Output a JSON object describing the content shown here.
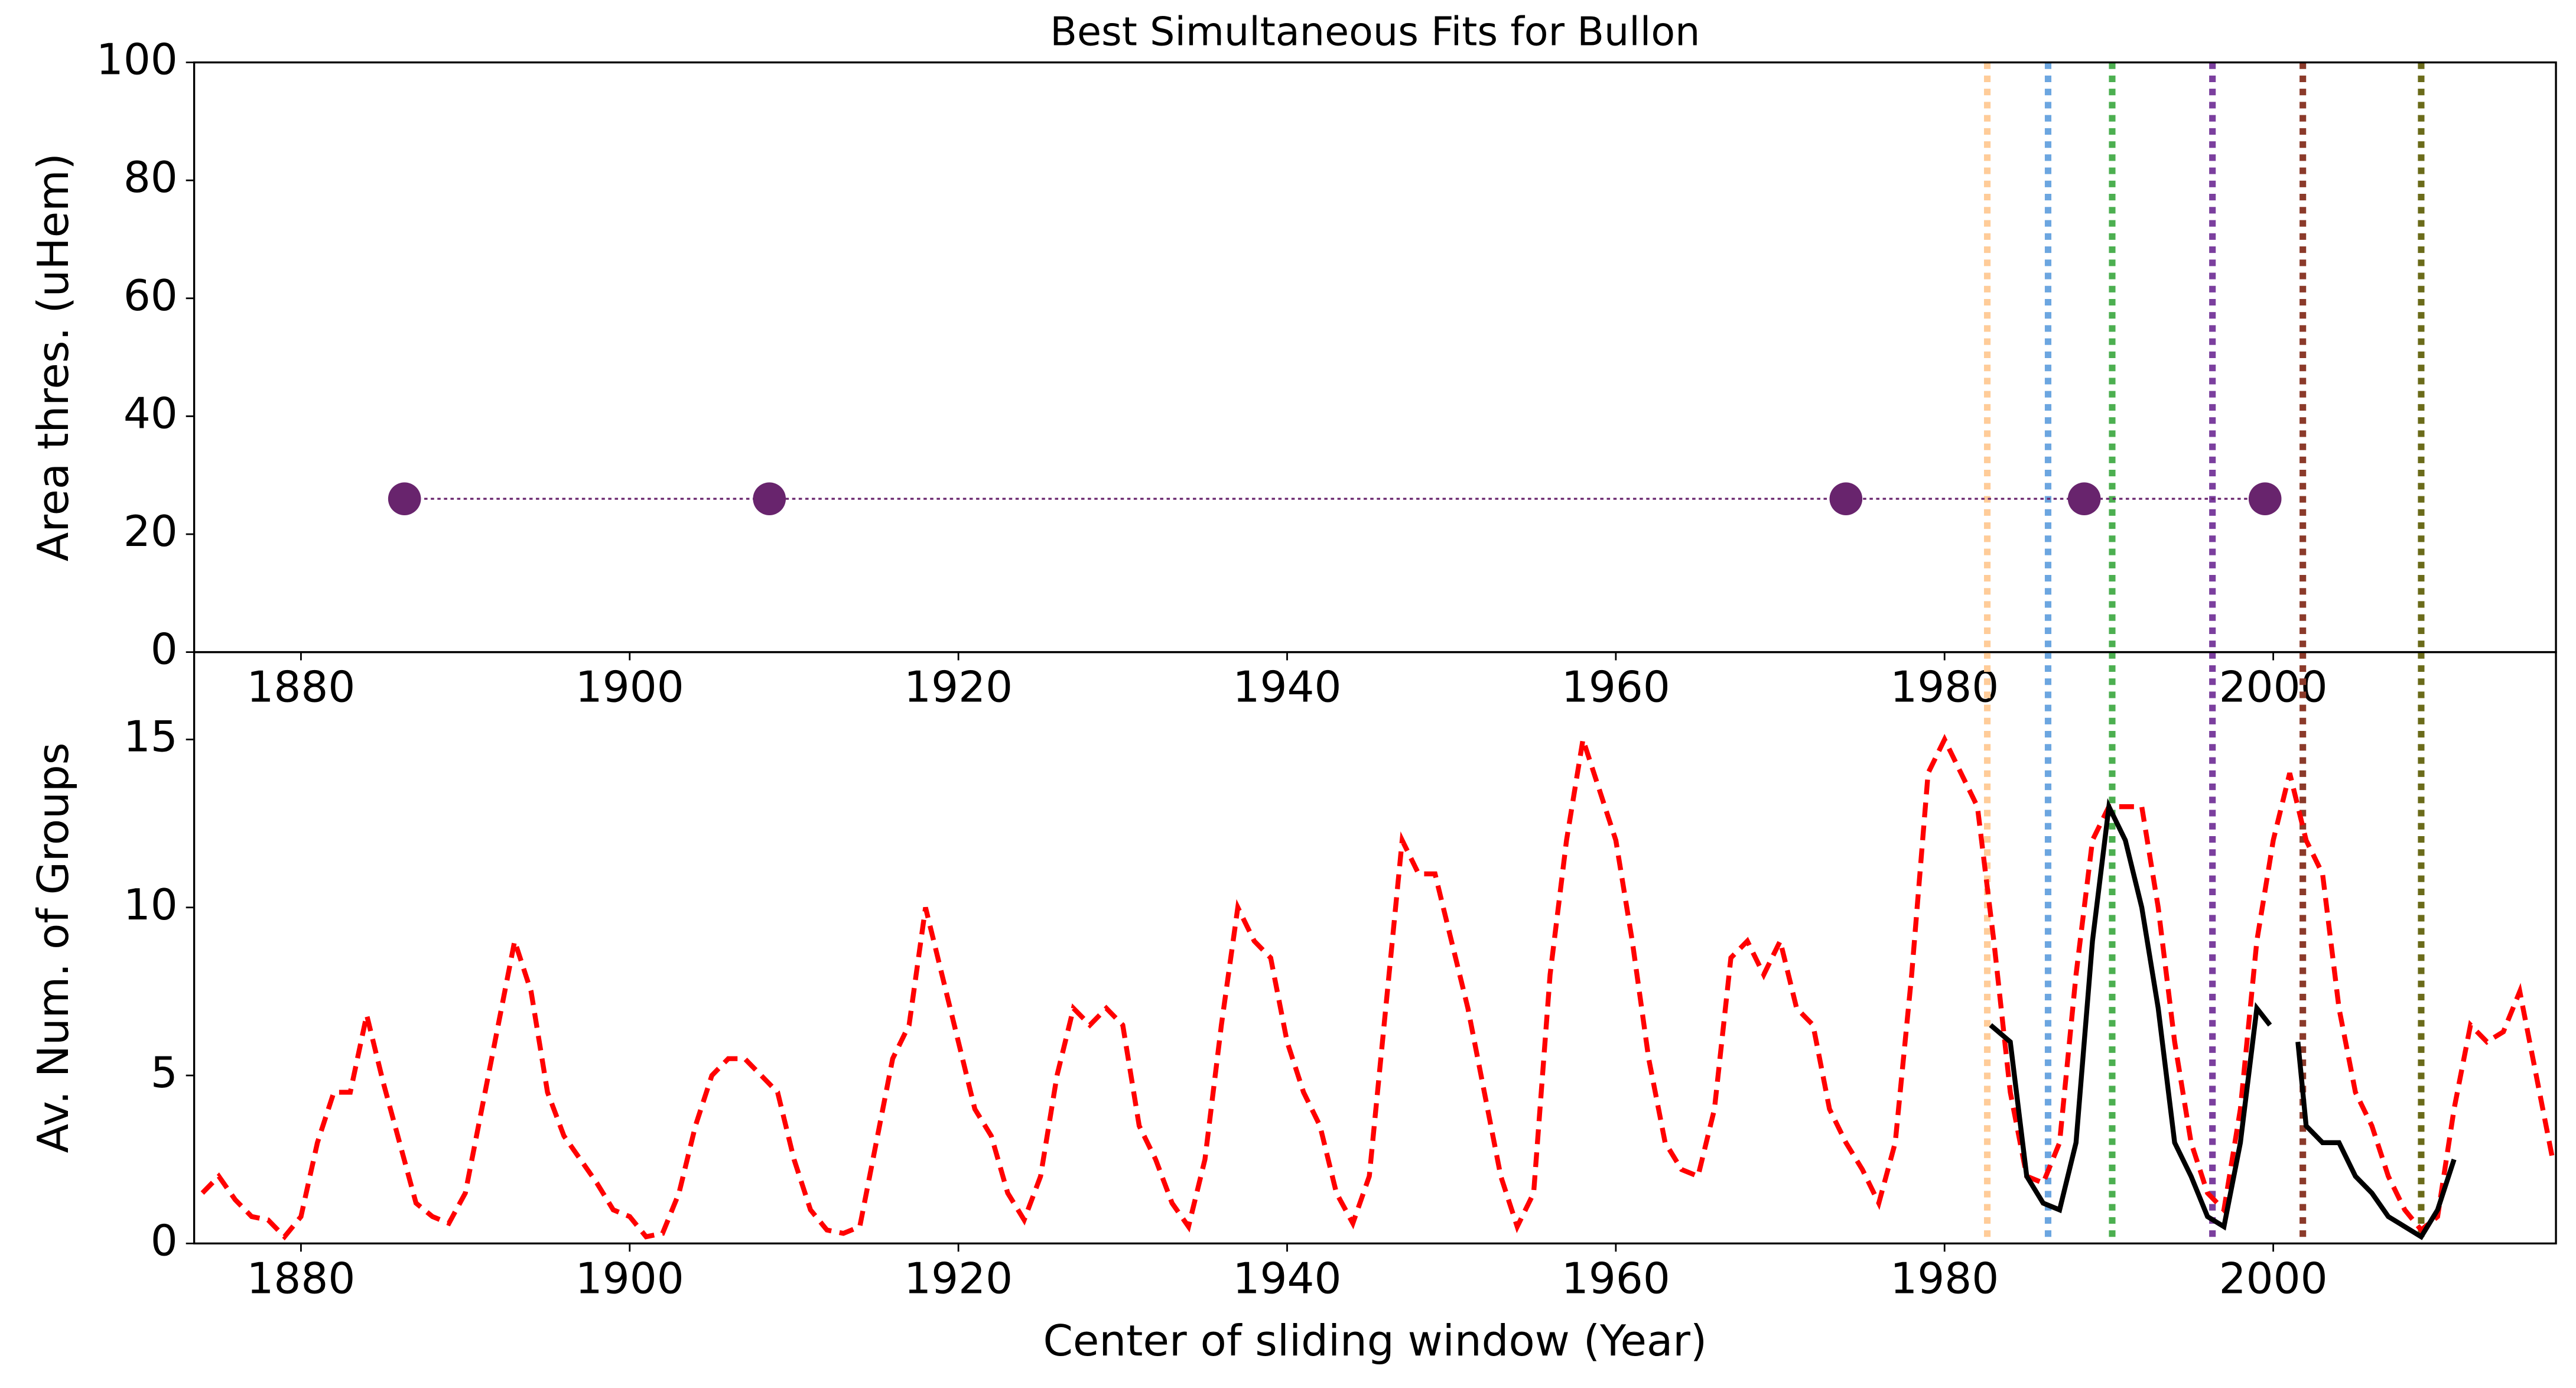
{
  "chart_data": [
    {
      "type": "scatter",
      "title": "Best Simultaneous Fits for Bullon",
      "ylabel": "Area thres. (uHem)",
      "xlim": [
        1873.5,
        2017.2
      ],
      "ylim": [
        0,
        100
      ],
      "xticks": [
        1880,
        1900,
        1920,
        1940,
        1960,
        1980,
        2000
      ],
      "yticks": [
        0,
        20,
        40,
        60,
        80,
        100
      ],
      "series": [
        {
          "color": "#68246d",
          "x": [
            1886.3,
            1908.5,
            1974.0,
            1988.5,
            1999.5
          ],
          "values": [
            26,
            26,
            26,
            26,
            26
          ]
        }
      ]
    },
    {
      "type": "line",
      "xlabel": "Center of sliding window (Year)",
      "ylabel": "Av. Num. of Groups",
      "xlim": [
        1873.5,
        2017.2
      ],
      "ylim": [
        0,
        17.6
      ],
      "xticks": [
        1880,
        1900,
        1920,
        1940,
        1960,
        1980,
        2000
      ],
      "yticks": [
        0,
        5,
        10,
        15
      ],
      "series": [
        {
          "color": "#ff0000",
          "dash": true,
          "x": [
            1874,
            1875,
            1876,
            1877,
            1878,
            1879,
            1880,
            1881,
            1882,
            1883,
            1884,
            1885,
            1886,
            1887,
            1888,
            1889,
            1890,
            1891,
            1892,
            1893,
            1894,
            1895,
            1896,
            1897,
            1898,
            1899,
            1900,
            1901,
            1902,
            1903,
            1904,
            1905,
            1906,
            1907,
            1908,
            1909,
            1910,
            1911,
            1912,
            1913,
            1914,
            1915,
            1916,
            1917,
            1918,
            1919,
            1920,
            1921,
            1922,
            1923,
            1924,
            1925,
            1926,
            1927,
            1928,
            1929,
            1930,
            1931,
            1932,
            1933,
            1934,
            1935,
            1936,
            1937,
            1938,
            1939,
            1940,
            1941,
            1942,
            1943,
            1944,
            1945,
            1946,
            1947,
            1948,
            1949,
            1950,
            1951,
            1952,
            1953,
            1954,
            1955,
            1956,
            1957,
            1958,
            1959,
            1960,
            1961,
            1962,
            1963,
            1964,
            1965,
            1966,
            1967,
            1968,
            1969,
            1970,
            1971,
            1972,
            1973,
            1974,
            1975,
            1976,
            1977,
            1978,
            1979,
            1980,
            1981,
            1982,
            1983,
            1984,
            1985,
            1986,
            1987,
            1988,
            1989,
            1990,
            1991,
            1992,
            1993,
            1994,
            1995,
            1996,
            1997,
            1998,
            1999,
            2000,
            2001,
            2002,
            2003,
            2004,
            2005,
            2006,
            2007,
            2008,
            2009,
            2010,
            2011,
            2012,
            2013,
            2014,
            2015,
            2016,
            2017
          ],
          "values": [
            1.5,
            2,
            1.3,
            0.8,
            0.7,
            0.2,
            0.8,
            3,
            4.5,
            4.5,
            6.8,
            4.8,
            3,
            1.2,
            0.8,
            0.6,
            1.5,
            4,
            6.5,
            9,
            7.5,
            4.5,
            3.2,
            2.5,
            1.8,
            1,
            0.8,
            0.2,
            0.3,
            1.5,
            3.5,
            5,
            5.5,
            5.5,
            5,
            4.5,
            2.5,
            1,
            0.4,
            0.3,
            0.5,
            3,
            5.5,
            6.5,
            10,
            8,
            6,
            4,
            3.2,
            1.5,
            0.7,
            2,
            5,
            7,
            6.5,
            7,
            6.5,
            3.5,
            2.5,
            1.2,
            0.5,
            2.5,
            6.5,
            10,
            9,
            8.5,
            6,
            4.5,
            3.5,
            1.5,
            0.6,
            2,
            7,
            12,
            11,
            11,
            9,
            7,
            4.5,
            2,
            0.5,
            1.5,
            8,
            12,
            15,
            13.5,
            12,
            9,
            5.5,
            3,
            2.2,
            2,
            4,
            8.5,
            9,
            8,
            9,
            7,
            6.5,
            4,
            3,
            2.2,
            1.2,
            3,
            8,
            14,
            15,
            14,
            13,
            9,
            4.5,
            2,
            1.8,
            3,
            8,
            12,
            13,
            13,
            13,
            10,
            6,
            3,
            1.5,
            1,
            4,
            9,
            12,
            14,
            12,
            11,
            7,
            4.5,
            3.5,
            2,
            1,
            0.4,
            0.8,
            4,
            6.5,
            6,
            6.3,
            7.5,
            5,
            2.5
          ]
        },
        {
          "color": "#000000",
          "dash": false,
          "x": [
            1982.8,
            1984,
            1985,
            1986,
            1987,
            1988,
            1989,
            1990,
            1991,
            1992,
            1993,
            1994,
            1995,
            1996,
            1997,
            1998,
            1999,
            1999.8,
            2000.5,
            2001.5,
            2002,
            2003,
            2004,
            2005,
            2006,
            2007,
            2008,
            2009,
            2010,
            2011
          ],
          "values": [
            6.5,
            6,
            2,
            1.2,
            1,
            3,
            9,
            13,
            12,
            10,
            7,
            3,
            2,
            0.8,
            0.5,
            3,
            7,
            6.5,
            null,
            6,
            3.5,
            3,
            3,
            2,
            1.5,
            0.8,
            0.5,
            0.2,
            1,
            2.5
          ]
        }
      ],
      "vlines": [
        {
          "x": 1982.6,
          "color": "#ffcc99"
        },
        {
          "x": 1986.3,
          "color": "#6ca6e0"
        },
        {
          "x": 1990.2,
          "color": "#4caf50"
        },
        {
          "x": 1996.3,
          "color": "#7b3f9e"
        },
        {
          "x": 2001.8,
          "color": "#8b3a2a"
        },
        {
          "x": 2009.0,
          "color": "#6b6b1a"
        }
      ]
    }
  ]
}
